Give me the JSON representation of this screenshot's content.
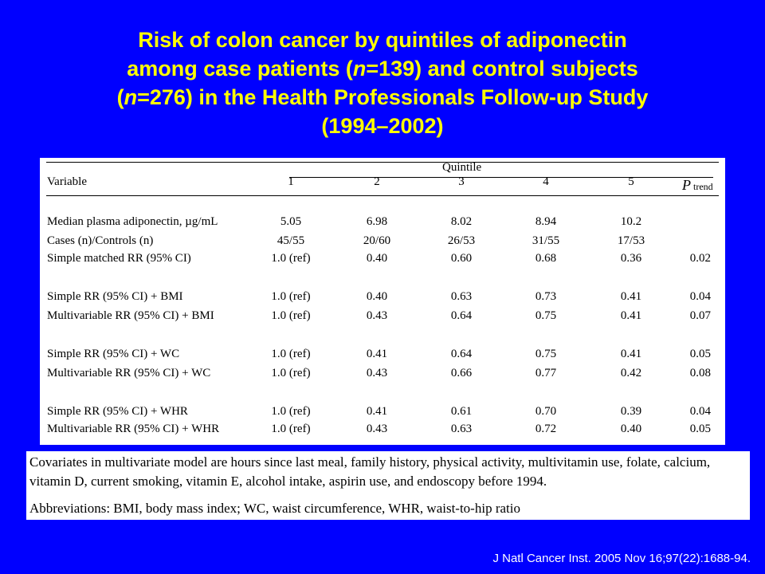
{
  "title": {
    "line1": "Risk of colon cancer by quintiles of adiponectin",
    "line2_pre": "among case patients (",
    "line2_n": "n",
    "line2_post": "=139) and control subjects",
    "line3_pre": "(",
    "line3_n": "n",
    "line3_post": "=276) in the Health Professionals Follow-up Study",
    "line4": "(1994–2002)"
  },
  "table": {
    "variable_header": "Variable",
    "quintile_header": "Quintile",
    "quintiles": [
      "1",
      "2",
      "3",
      "4",
      "5"
    ],
    "ptrend_p": "P",
    "ptrend_sub": "trend",
    "rows": [
      {
        "label": "Median plasma adiponectin, µg/mL",
        "values": [
          "5.05",
          "6.98",
          "8.02",
          "8.94",
          "10.2"
        ],
        "p": ""
      },
      {
        "label": "Cases (n)/Controls (n)",
        "values": [
          "45/55",
          "20/60",
          "26/53",
          "31/55",
          "17/53"
        ],
        "p": ""
      },
      {
        "label": "Simple matched RR (95% CI)",
        "values": [
          "1.0 (ref)",
          "0.40",
          "0.60",
          "0.68",
          "0.36"
        ],
        "p": "0.02"
      },
      {
        "label": "Simple RR (95% CI) + BMI",
        "values": [
          "1.0 (ref)",
          "0.40",
          "0.63",
          "0.73",
          "0.41"
        ],
        "p": "0.04"
      },
      {
        "label": "Multivariable RR (95% CI) + BMI",
        "values": [
          "1.0 (ref)",
          "0.43",
          "0.64",
          "0.75",
          "0.41"
        ],
        "p": "0.07"
      },
      {
        "label": "Simple RR (95% CI) + WC",
        "values": [
          "1.0 (ref)",
          "0.41",
          "0.64",
          "0.75",
          "0.41"
        ],
        "p": "0.05"
      },
      {
        "label": "Multivariable RR (95% CI) + WC",
        "values": [
          "1.0 (ref)",
          "0.43",
          "0.66",
          "0.77",
          "0.42"
        ],
        "p": "0.08"
      },
      {
        "label": "Simple RR (95% CI) + WHR",
        "values": [
          "1.0 (ref)",
          "0.41",
          "0.61",
          "0.70",
          "0.39"
        ],
        "p": "0.04"
      },
      {
        "label": "Multivariable RR (95% CI) + WHR",
        "values": [
          "1.0 (ref)",
          "0.43",
          "0.63",
          "0.72",
          "0.40"
        ],
        "p": "0.05"
      }
    ]
  },
  "footer": {
    "covariates": "Covariates in multivariate model are hours since last meal, family history, physical activity, multivitamin use, folate, calcium, vitamin D, current smoking, vitamin E, alcohol intake, aspirin use, and endoscopy before 1994.",
    "abbreviations": "Abbreviations: BMI, body mass index; WC, waist circumference, WHR, waist-to-hip ratio"
  },
  "citation": "J Natl Cancer Inst. 2005 Nov 16;97(22):1688-94.",
  "colors": {
    "background": "#0000ff",
    "title": "#ffff00",
    "panel": "#ffffff",
    "citation": "#ffffff"
  }
}
